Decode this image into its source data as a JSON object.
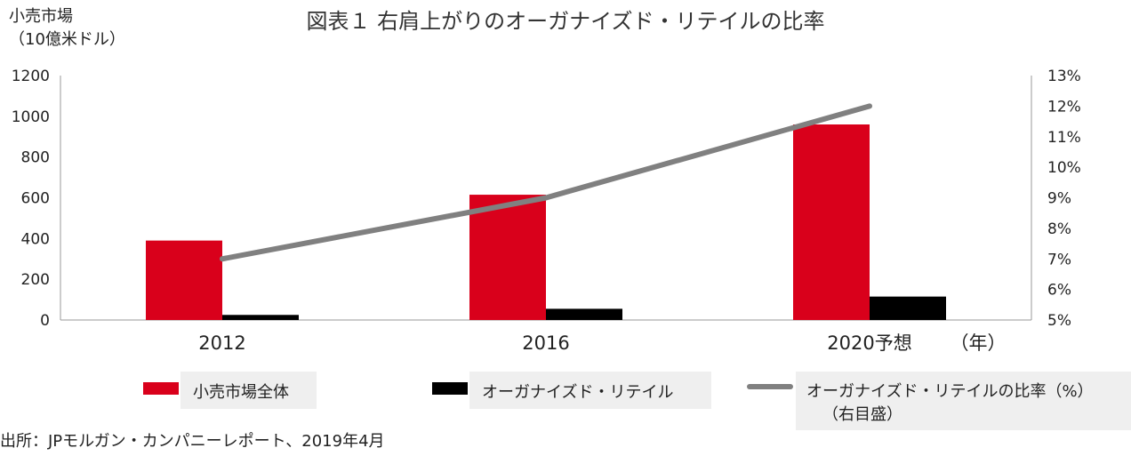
{
  "title": "図表１ 右肩上がりのオーガナイズド・リテイルの比率",
  "y_axis_label_line1": "小売市場",
  "y_axis_label_line2": "（10億米ドル）",
  "x_axis_unit": "（年）",
  "source": "出所：JPモルガン・カンパニーレポート、2019年4月",
  "legend": {
    "item1": "小売市場全体",
    "item2": "オーガナイズド・リテイル",
    "item3_line1": "オーガナイズド・リテイルの比率（%）",
    "item3_line2": "（右目盛）"
  },
  "colors": {
    "total": "#d9001b",
    "organized": "#000000",
    "ratio": "#808080",
    "legend_bg": "#efefef"
  },
  "chart_data": {
    "type": "bar",
    "categories": [
      "2012",
      "2016",
      "2020予想"
    ],
    "series": [
      {
        "name": "小売市場全体",
        "type": "bar",
        "axis": "left",
        "values": [
          390,
          615,
          960
        ]
      },
      {
        "name": "オーガナイズド・リテイル",
        "type": "bar",
        "axis": "left",
        "values": [
          25,
          55,
          115
        ]
      },
      {
        "name": "オーガナイズド・リテイルの比率（%）",
        "type": "line",
        "axis": "right",
        "values": [
          7.0,
          9.0,
          12.0
        ]
      }
    ],
    "ylim": [
      0,
      1200
    ],
    "yticks": [
      "0",
      "200",
      "400",
      "600",
      "800",
      "1000",
      "1200"
    ],
    "y2lim": [
      5,
      13
    ],
    "y2ticks": [
      "5%",
      "6%",
      "7%",
      "8%",
      "9%",
      "10%",
      "11%",
      "12%",
      "13%"
    ],
    "legend_position": "bottom",
    "grid": false
  }
}
